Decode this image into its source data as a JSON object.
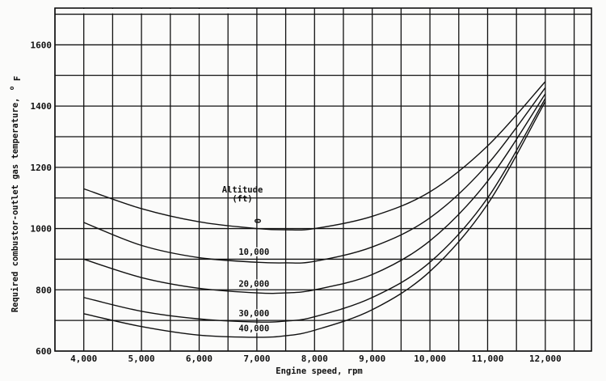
{
  "chart_data": {
    "type": "line",
    "xlabel": "Engine speed, rpm",
    "ylabel": "Required combustor-outlet gas temperature, °F",
    "ylabel_main": "Required combustor-outlet gas temperature,",
    "ylabel_unit_deg": "o",
    "ylabel_unit_letter": "F",
    "xlim": [
      3500,
      12800
    ],
    "ylim": [
      600,
      1720
    ],
    "x_minor_step": 500,
    "y_minor_step": 100,
    "x_ticks": [
      4000,
      5000,
      6000,
      7000,
      8000,
      9000,
      10000,
      11000,
      12000
    ],
    "x_tick_labels": [
      "4,000",
      "5,000",
      "6,000",
      "7,000",
      "8,000",
      "9,000",
      "10,000",
      "11,000",
      "12,000"
    ],
    "y_ticks": [
      600,
      800,
      1000,
      1200,
      1400,
      1600
    ],
    "y_tick_labels": [
      "600",
      "800",
      "1000",
      "1200",
      "1400",
      "1600"
    ],
    "grid": true,
    "annotation_title": "Altitude",
    "annotation_unit": "(ft)",
    "series": [
      {
        "name": "0",
        "x": [
          4000,
          5000,
          6000,
          7000,
          7500,
          8000,
          9000,
          10000,
          11000,
          12000
        ],
        "y": [
          1130,
          1065,
          1022,
          1000,
          996,
          1000,
          1040,
          1120,
          1270,
          1480
        ]
      },
      {
        "name": "10,000",
        "x": [
          4000,
          5000,
          6000,
          7000,
          7500,
          8000,
          9000,
          10000,
          11000,
          12000
        ],
        "y": [
          1020,
          945,
          905,
          890,
          888,
          893,
          940,
          1035,
          1210,
          1460
        ]
      },
      {
        "name": "20,000",
        "x": [
          4000,
          5000,
          6000,
          7000,
          7500,
          8000,
          9000,
          10000,
          11000,
          12000
        ],
        "y": [
          900,
          840,
          805,
          790,
          790,
          800,
          850,
          960,
          1155,
          1440
        ]
      },
      {
        "name": "30,000",
        "x": [
          4000,
          5000,
          6000,
          7000,
          7500,
          8000,
          9000,
          10000,
          11000,
          12000
        ],
        "y": [
          775,
          730,
          705,
          695,
          698,
          712,
          775,
          890,
          1100,
          1425
        ]
      },
      {
        "name": "40,000",
        "x": [
          4000,
          5000,
          6000,
          7000,
          7500,
          8000,
          9000,
          10000,
          11000,
          12000
        ],
        "y": [
          722,
          680,
          652,
          645,
          650,
          668,
          735,
          860,
          1080,
          1415
        ]
      }
    ],
    "series_labels": [
      "0",
      "10,000",
      "20,000",
      "30,000",
      "40,000"
    ]
  }
}
